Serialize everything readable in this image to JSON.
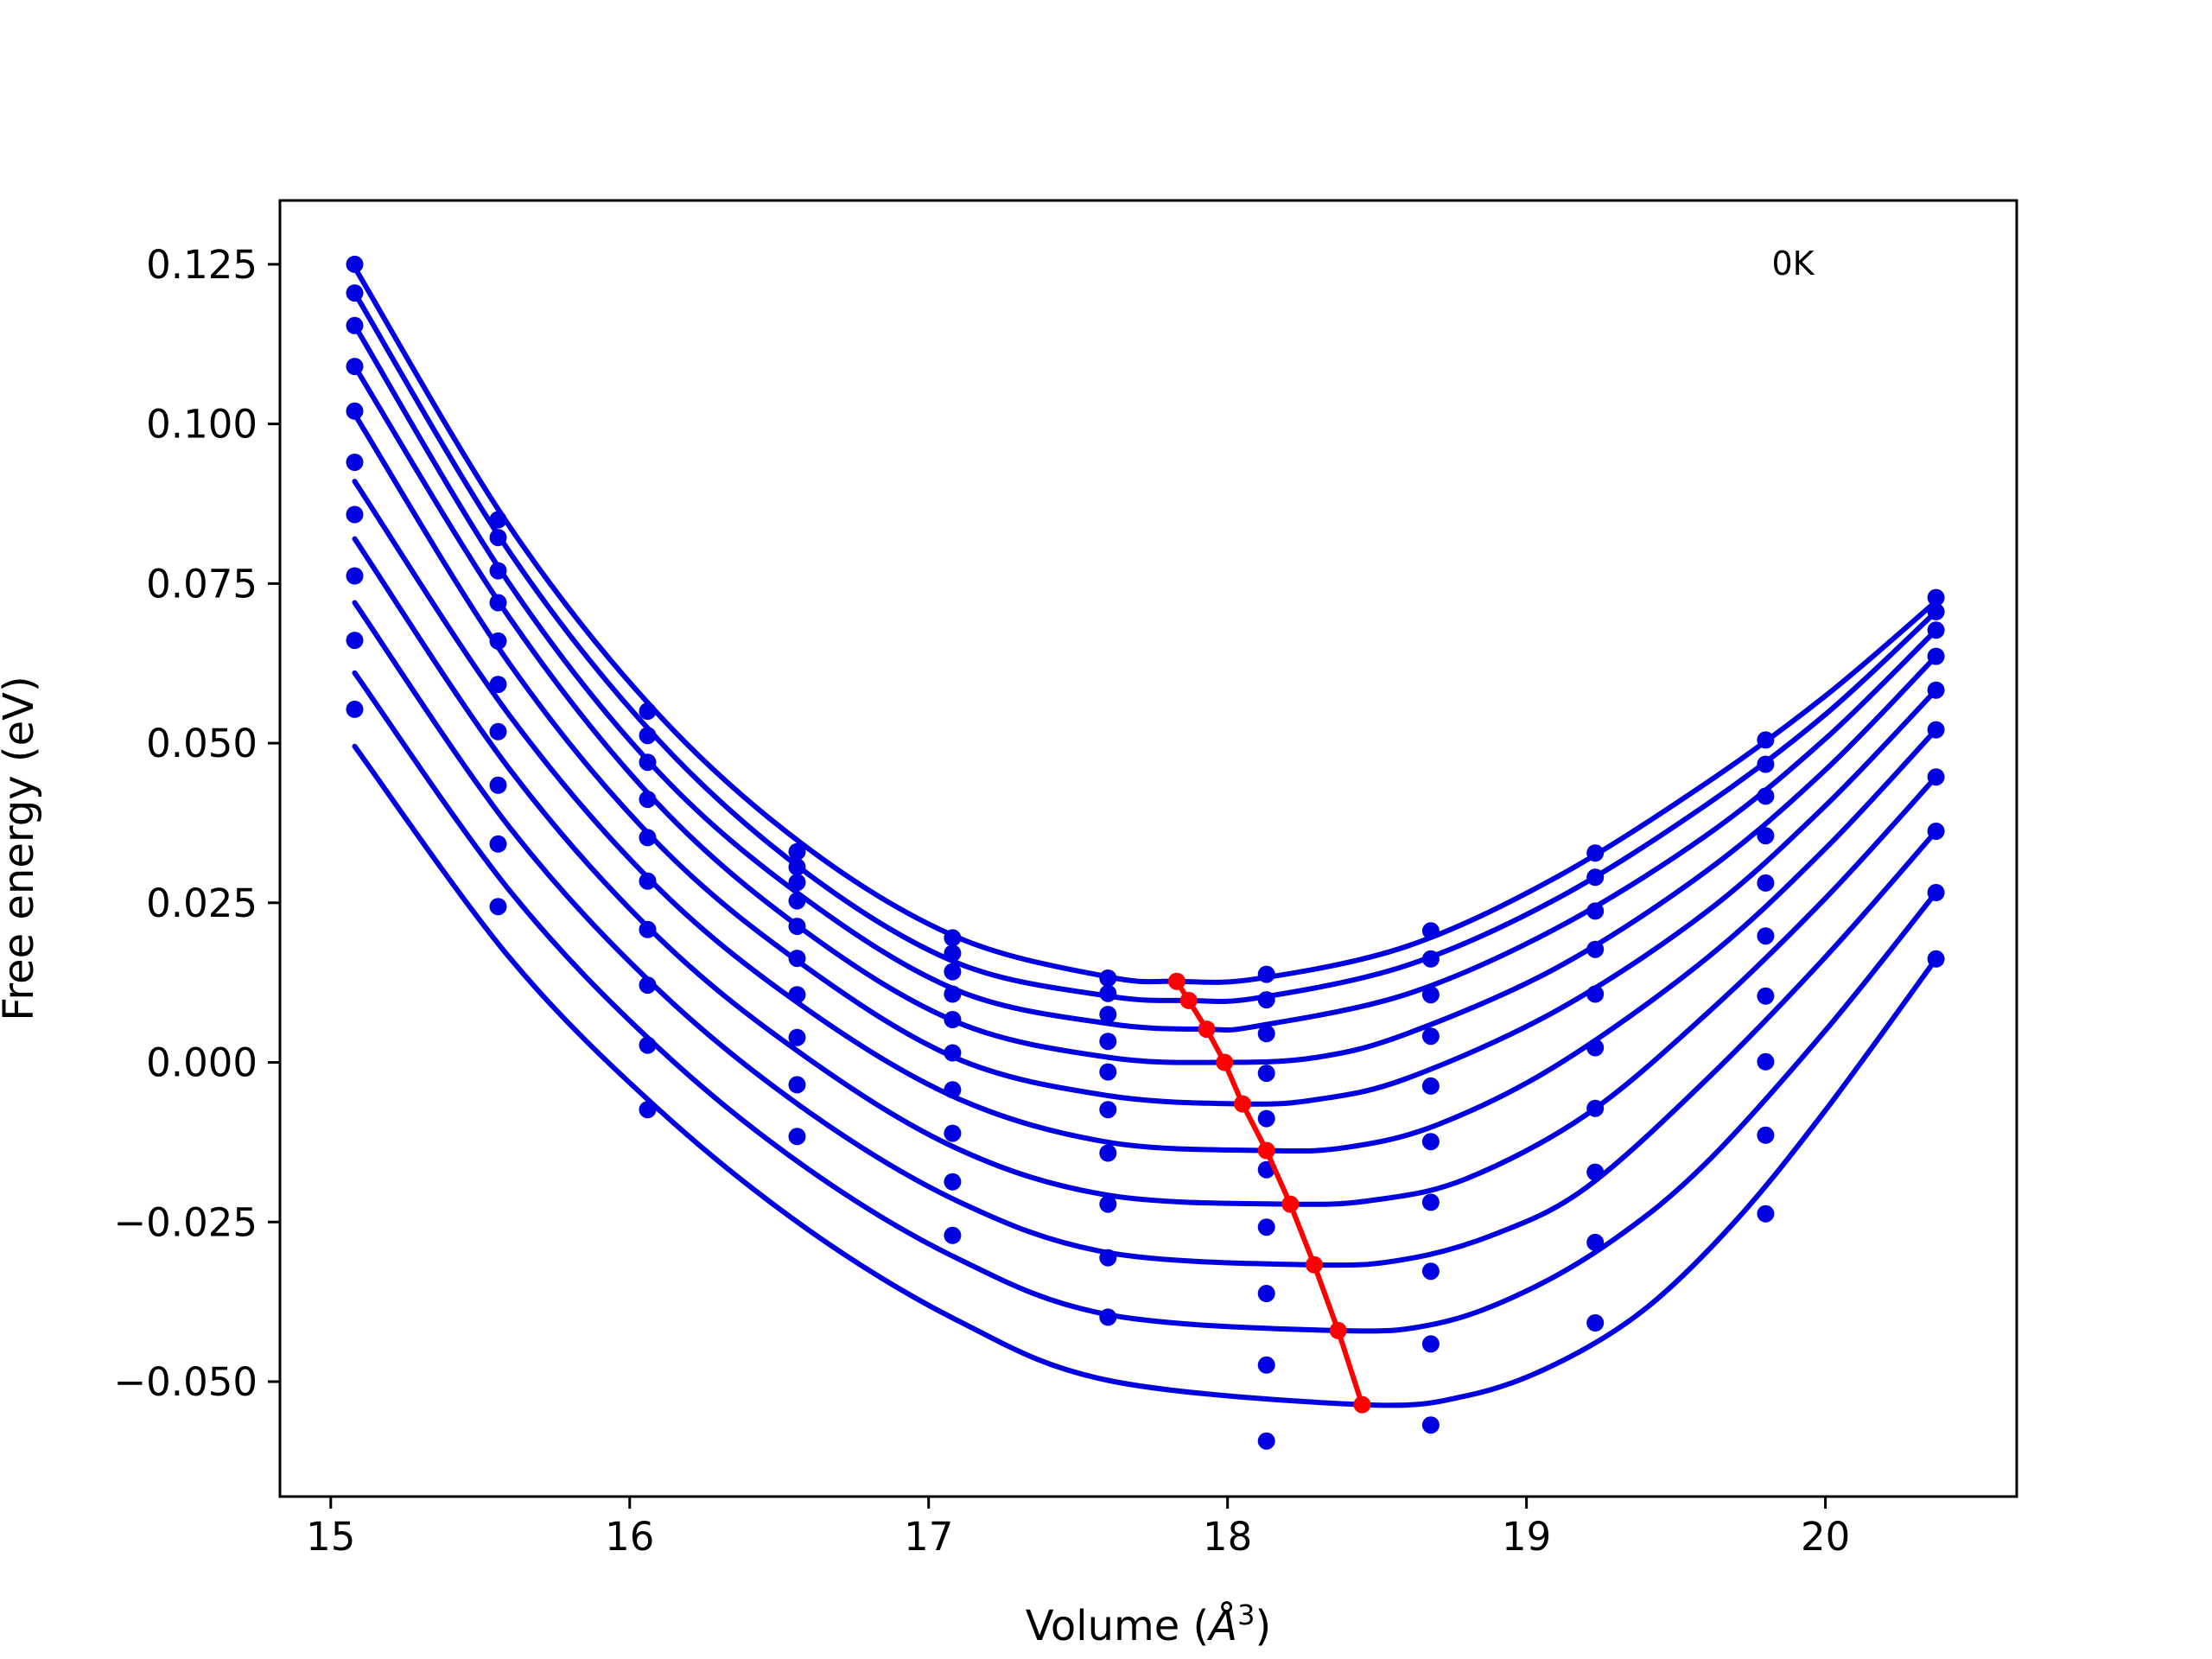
{
  "chart_data": {
    "type": "scatter",
    "xlabel": "Volume (",
    "xlabel_symbol": "Å",
    "xlabel_exp": "3",
    "xlabel_close": ")",
    "ylabel": "Free energy (eV)",
    "annotation": "0K",
    "annotation_position": "top-right",
    "xlim": [
      14.83,
      20.64
    ],
    "ylim": [
      -0.068,
      0.135
    ],
    "x_ticks": [
      15,
      16,
      17,
      18,
      19,
      20
    ],
    "y_ticks": [
      -0.05,
      -0.025,
      0.0,
      0.025,
      0.05,
      0.075,
      0.1,
      0.125
    ],
    "x_tick_labels": [
      "15",
      "16",
      "17",
      "18",
      "19",
      "20"
    ],
    "y_tick_labels": [
      "−0.050",
      "−0.025",
      "0.000",
      "0.025",
      "0.050",
      "0.075",
      "0.100",
      "0.125"
    ],
    "grid": false,
    "colors": {
      "points": "#0000e0",
      "fits": "#0000e0",
      "minima": "#ff0000"
    },
    "volumes": [
      15.08,
      15.56,
      16.06,
      16.56,
      17.08,
      17.6,
      18.13,
      18.68,
      19.23,
      19.8,
      20.37
    ],
    "series": [
      {
        "energies": [
          0.125,
          0.085,
          0.055,
          0.033,
          0.0195,
          0.0132,
          0.0138,
          0.0206,
          0.0328,
          0.0505,
          0.0728
        ]
      },
      {
        "energies": [
          0.1205,
          0.0822,
          0.0512,
          0.0306,
          0.0171,
          0.0108,
          0.0098,
          0.0162,
          0.029,
          0.0467,
          0.0706
        ]
      },
      {
        "energies": [
          0.1154,
          0.077,
          0.047,
          0.0282,
          0.0142,
          0.0075,
          0.0045,
          0.0106,
          0.0237,
          0.0417,
          0.0677
        ]
      },
      {
        "energies": [
          0.109,
          0.072,
          0.0412,
          0.0253,
          0.0107,
          0.0033,
          -0.0017,
          0.0041,
          0.0177,
          0.0355,
          0.0636
        ]
      },
      {
        "energies": [
          0.102,
          0.066,
          0.0352,
          0.0213,
          0.0067,
          -0.0015,
          -0.0088,
          -0.0037,
          0.0107,
          0.0281,
          0.0583
        ]
      },
      {
        "energies": [
          0.094,
          0.0592,
          0.0284,
          0.0163,
          0.0015,
          -0.0074,
          -0.0168,
          -0.0124,
          0.0023,
          0.0198,
          0.0521
        ]
      },
      {
        "energies": [
          0.0858,
          0.0518,
          0.0208,
          0.0106,
          -0.0043,
          -0.0142,
          -0.0258,
          -0.0219,
          -0.0072,
          0.0104,
          0.0447
        ]
      },
      {
        "energies": [
          0.0762,
          0.0434,
          0.0121,
          0.0039,
          -0.0111,
          -0.0222,
          -0.0362,
          -0.0327,
          -0.0172,
          0.0001,
          0.0362
        ]
      },
      {
        "energies": [
          0.0661,
          0.0342,
          0.0027,
          -0.0035,
          -0.0187,
          -0.0306,
          -0.0474,
          -0.0441,
          -0.0282,
          -0.0114,
          0.0266
        ]
      },
      {
        "energies": [
          0.0553,
          0.0244,
          -0.0074,
          -0.0116,
          -0.0271,
          -0.0399,
          -0.0593,
          -0.0568,
          -0.0408,
          -0.0237,
          0.0162
        ]
      }
    ],
    "fit_curves": [
      {
        "x": [
          15.08,
          15.6,
          16.1,
          16.6,
          17.1,
          17.6,
          17.83,
          18.1,
          18.6,
          19.1,
          19.6,
          20.0,
          20.37
        ],
        "y": [
          0.1245,
          0.0838,
          0.0543,
          0.0334,
          0.0195,
          0.0134,
          0.0127,
          0.0131,
          0.0182,
          0.029,
          0.0437,
          0.0574,
          0.0722
        ]
      },
      {
        "x": [
          15.08,
          15.6,
          16.1,
          16.6,
          17.1,
          17.6,
          17.87,
          18.1,
          18.6,
          19.1,
          19.6,
          20.0,
          20.37
        ],
        "y": [
          0.1205,
          0.0798,
          0.0503,
          0.0294,
          0.0155,
          0.0104,
          0.0097,
          0.0101,
          0.0152,
          0.0256,
          0.0403,
          0.0545,
          0.0706
        ]
      },
      {
        "x": [
          15.08,
          15.6,
          16.1,
          16.6,
          17.1,
          17.6,
          17.93,
          18.1,
          18.6,
          19.1,
          19.6,
          20.0,
          20.37
        ],
        "y": [
          0.1154,
          0.0748,
          0.0453,
          0.0252,
          0.0112,
          0.0061,
          0.0052,
          0.0057,
          0.0107,
          0.021,
          0.0355,
          0.0507,
          0.0677
        ]
      },
      {
        "x": [
          15.08,
          15.6,
          16.1,
          16.6,
          17.1,
          17.6,
          17.99,
          18.3,
          18.6,
          19.1,
          19.6,
          20.0,
          20.37
        ],
        "y": [
          0.109,
          0.0695,
          0.0402,
          0.0201,
          0.0062,
          0.0008,
          0.0,
          0.0008,
          0.0045,
          0.0148,
          0.0299,
          0.0458,
          0.0636
        ]
      },
      {
        "x": [
          15.08,
          15.6,
          16.1,
          16.6,
          17.1,
          17.6,
          18.05,
          18.3,
          18.6,
          19.1,
          19.6,
          20.0,
          20.37
        ],
        "y": [
          0.1015,
          0.0623,
          0.034,
          0.0146,
          0.0005,
          -0.0052,
          -0.0065,
          -0.0058,
          -0.0025,
          0.0081,
          0.0235,
          0.0402,
          0.0583
        ]
      },
      {
        "x": [
          15.08,
          15.6,
          16.1,
          16.6,
          17.1,
          17.6,
          18.13,
          18.4,
          18.7,
          19.1,
          19.6,
          20.0,
          20.37
        ],
        "y": [
          0.091,
          0.0542,
          0.0271,
          0.0081,
          -0.0057,
          -0.0125,
          -0.0138,
          -0.0133,
          -0.0098,
          -0.0005,
          0.0162,
          0.0335,
          0.0521
        ]
      },
      {
        "x": [
          15.08,
          15.6,
          16.1,
          16.6,
          17.1,
          17.6,
          18.21,
          18.5,
          18.8,
          19.2,
          19.6,
          20.0,
          20.37
        ],
        "y": [
          0.082,
          0.0458,
          0.0194,
          0.0005,
          -0.0136,
          -0.0208,
          -0.0222,
          -0.0215,
          -0.0182,
          -0.0082,
          0.0075,
          0.0257,
          0.0447
        ]
      },
      {
        "x": [
          15.08,
          15.6,
          16.1,
          16.6,
          17.1,
          17.6,
          18.29,
          18.6,
          18.9,
          19.2,
          19.6,
          20.0,
          20.37
        ],
        "y": [
          0.072,
          0.0367,
          0.0112,
          -0.0078,
          -0.0218,
          -0.0298,
          -0.0317,
          -0.0308,
          -0.0268,
          -0.0196,
          -0.0028,
          0.0165,
          0.0362
        ]
      },
      {
        "x": [
          15.08,
          15.6,
          16.1,
          16.6,
          17.1,
          17.6,
          18.37,
          18.7,
          19.0,
          19.3,
          19.6,
          20.0,
          20.37
        ],
        "y": [
          0.061,
          0.0268,
          0.0021,
          -0.0168,
          -0.0308,
          -0.0395,
          -0.042,
          -0.0409,
          -0.0358,
          -0.0275,
          -0.0158,
          0.005,
          0.0266
        ]
      },
      {
        "x": [
          15.08,
          15.6,
          16.1,
          16.6,
          17.1,
          17.6,
          18.45,
          18.8,
          19.1,
          19.4,
          19.7,
          20.0,
          20.37
        ],
        "y": [
          0.0495,
          0.0163,
          -0.0075,
          -0.0263,
          -0.0405,
          -0.0498,
          -0.0536,
          -0.0522,
          -0.0472,
          -0.0385,
          -0.0248,
          -0.0075,
          0.0162
        ]
      }
    ],
    "minima": {
      "x": [
        17.83,
        17.87,
        17.93,
        17.99,
        18.05,
        18.13,
        18.21,
        18.29,
        18.37,
        18.45
      ],
      "y": [
        0.0127,
        0.0097,
        0.0052,
        0.0,
        -0.0065,
        -0.0138,
        -0.0222,
        -0.0317,
        -0.042,
        -0.0536
      ]
    }
  }
}
